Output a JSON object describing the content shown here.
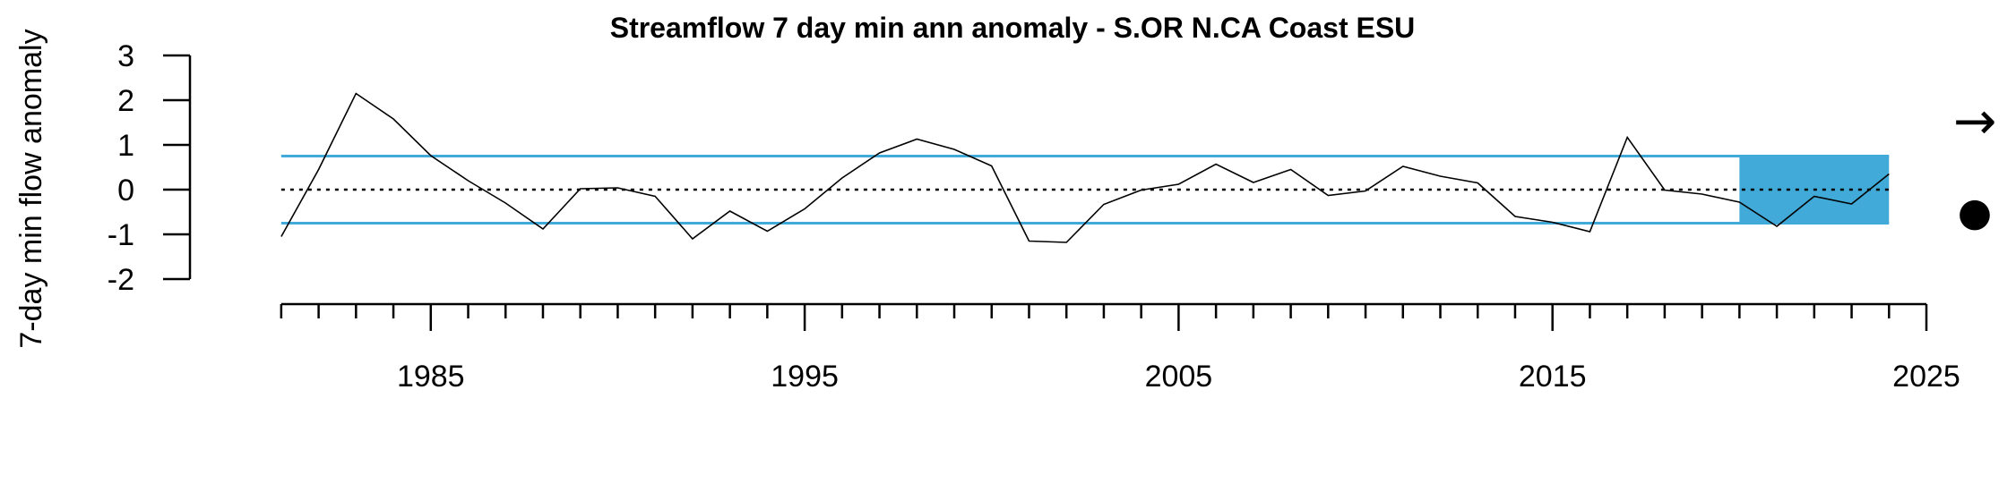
{
  "chart_data": {
    "type": "line",
    "title": "Streamflow 7 day min ann anomaly - S.OR N.CA Coast ESU",
    "xlabel": "",
    "ylabel": "7-day min flow anomaly",
    "xlim": [
      1980.5,
      2025
    ],
    "ylim": [
      -2,
      3
    ],
    "y_ticks": [
      3,
      2,
      1,
      0,
      -1,
      -2
    ],
    "x_tick_labels": [
      1985,
      1995,
      2005,
      2015,
      2025
    ],
    "mean": 0,
    "sd_band": [
      -0.75,
      0.75
    ],
    "highlight_period": [
      2020,
      2024
    ],
    "trend_symbol": "→",
    "status_symbol": "●",
    "colors": {
      "series": "#000000",
      "sd_lines": "#41aad8",
      "highlight": "#41aad8",
      "mean_line": "#000000"
    },
    "series": [
      {
        "x": [
          1981,
          1982,
          1983,
          1984,
          1985,
          1986,
          1987,
          1988,
          1989,
          1990,
          1991,
          1992,
          1993,
          1994,
          1995,
          1996,
          1997,
          1998,
          1999,
          2000,
          2001,
          2002,
          2003,
          2004,
          2005,
          2006,
          2007,
          2008,
          2009,
          2010,
          2011,
          2012,
          2013,
          2014,
          2015,
          2016,
          2017,
          2018,
          2019,
          2020,
          2021,
          2022,
          2023,
          2024
        ],
        "values": [
          -1.05,
          0.45,
          2.15,
          1.58,
          0.76,
          0.2,
          -0.3,
          -0.88,
          0.02,
          0.04,
          -0.15,
          -1.1,
          -0.48,
          -0.93,
          -0.43,
          0.26,
          0.82,
          1.13,
          0.9,
          0.53,
          -1.15,
          -1.18,
          -0.33,
          -0.01,
          0.12,
          0.57,
          0.16,
          0.45,
          -0.13,
          -0.03,
          0.52,
          0.3,
          0.15,
          -0.6,
          -0.73,
          -0.94,
          1.17,
          -0.01,
          -0.1,
          -0.28,
          -0.82,
          -0.15,
          -0.32,
          0.35
        ]
      }
    ]
  }
}
